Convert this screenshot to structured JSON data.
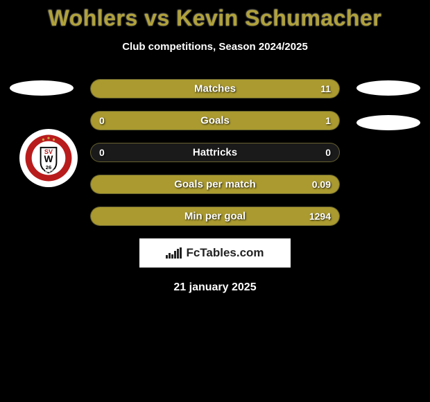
{
  "title": "Wohlers vs Kevin Schumacher",
  "subtitle": "Club competitions, Season 2024/2025",
  "colors": {
    "background": "#000000",
    "accent": "#b0a13a",
    "bar_fill": "#aa9a2f",
    "bar_empty": "#1a1a1a",
    "ellipse": "#ffffff",
    "text": "#ffffff"
  },
  "stats": [
    {
      "label": "Matches",
      "left_value": "",
      "right_value": "11",
      "left_pct": 0,
      "right_pct": 100
    },
    {
      "label": "Goals",
      "left_value": "0",
      "right_value": "1",
      "left_pct": 0,
      "right_pct": 100
    },
    {
      "label": "Hattricks",
      "left_value": "0",
      "right_value": "0",
      "left_pct": 0,
      "right_pct": 0
    },
    {
      "label": "Goals per match",
      "left_value": "",
      "right_value": "0.09",
      "left_pct": 0,
      "right_pct": 100
    },
    {
      "label": "Min per goal",
      "left_value": "",
      "right_value": "1294",
      "left_pct": 0,
      "right_pct": 100
    }
  ],
  "attribution": "FcTables.com",
  "date": "21 january 2025",
  "club_badge": {
    "outer": "#ffffff",
    "ring": "#b91c1c",
    "shield_border": "#000000",
    "shield_fill": "#ffffff",
    "text_sv": "SV",
    "text_w": "W",
    "text_num": "26",
    "ring_text_top": "",
    "ring_text_bottom": "WEHEN WIESBADEN"
  }
}
